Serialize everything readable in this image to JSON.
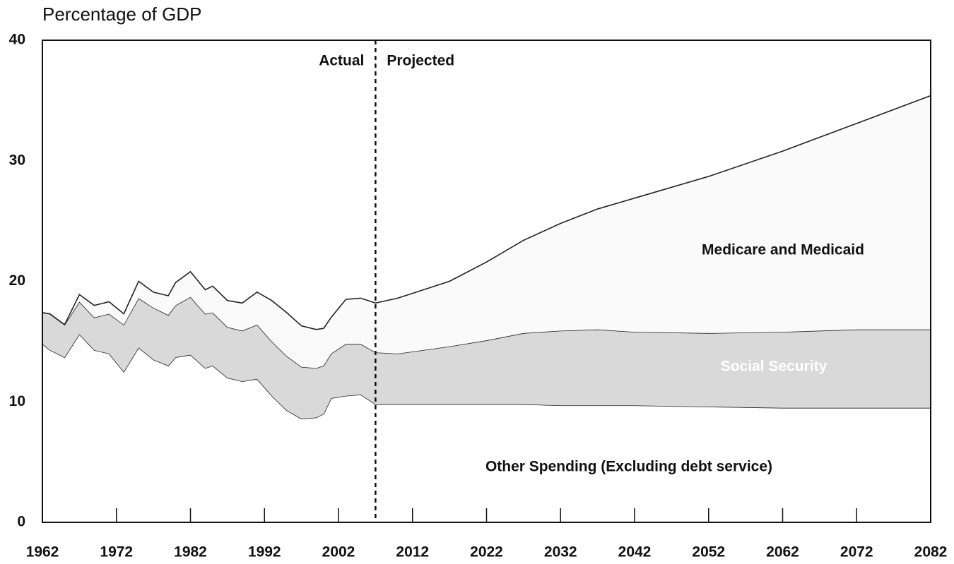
{
  "chart_data": {
    "type": "stacked_area",
    "title": "Percentage of GDP",
    "x": [
      1962,
      1963,
      1965,
      1967,
      1969,
      1971,
      1973,
      1975,
      1977,
      1979,
      1980,
      1982,
      1984,
      1985,
      1987,
      1989,
      1991,
      1993,
      1995,
      1997,
      1999,
      2000,
      2001,
      2003,
      2005,
      2007,
      2010,
      2017,
      2022,
      2027,
      2032,
      2037,
      2042,
      2052,
      2062,
      2072,
      2082
    ],
    "series": [
      {
        "name": "Other Spending (Excluding debt service)",
        "color": "#ffffff",
        "values": [
          14.8,
          14.3,
          13.7,
          15.6,
          14.3,
          14.0,
          12.5,
          14.5,
          13.5,
          13.0,
          13.7,
          13.9,
          12.8,
          13.0,
          12.0,
          11.7,
          11.9,
          10.5,
          9.3,
          8.6,
          8.7,
          9.0,
          10.3,
          10.5,
          10.6,
          9.8,
          9.8,
          9.8,
          9.8,
          9.8,
          9.7,
          9.7,
          9.7,
          9.6,
          9.5,
          9.5,
          9.5
        ]
      },
      {
        "name": "Social Security",
        "color": "#d9d9d9",
        "values": [
          2.6,
          3.0,
          2.7,
          2.7,
          2.7,
          3.3,
          3.9,
          4.1,
          4.3,
          4.2,
          4.3,
          4.8,
          4.5,
          4.4,
          4.2,
          4.2,
          4.5,
          4.5,
          4.5,
          4.3,
          4.1,
          4.0,
          3.7,
          4.3,
          4.2,
          4.3,
          4.2,
          4.8,
          5.3,
          5.9,
          6.2,
          6.3,
          6.1,
          6.1,
          6.3,
          6.5,
          6.5
        ]
      },
      {
        "name": "Medicare and Medicaid",
        "color": "#fafafa",
        "values": [
          0,
          0,
          0,
          0.6,
          1.0,
          1.0,
          0.9,
          1.4,
          1.3,
          1.6,
          1.9,
          2.1,
          2.0,
          2.2,
          2.2,
          2.3,
          2.7,
          3.4,
          3.6,
          3.4,
          3.2,
          3.1,
          3.0,
          3.7,
          3.8,
          4.1,
          4.6,
          5.4,
          6.5,
          7.7,
          8.9,
          10.0,
          11.1,
          13.0,
          15.0,
          17.1,
          19.4
        ]
      }
    ],
    "xlim": [
      1962,
      2082
    ],
    "xticks": [
      1962,
      1972,
      1982,
      1992,
      2002,
      2012,
      2022,
      2032,
      2042,
      2052,
      2062,
      2072,
      2082
    ],
    "ylim": [
      0,
      40
    ],
    "yticks": [
      0,
      10,
      20,
      30,
      40
    ],
    "divider_x": 2007,
    "annotations": [
      "Actual",
      "Projected"
    ]
  }
}
